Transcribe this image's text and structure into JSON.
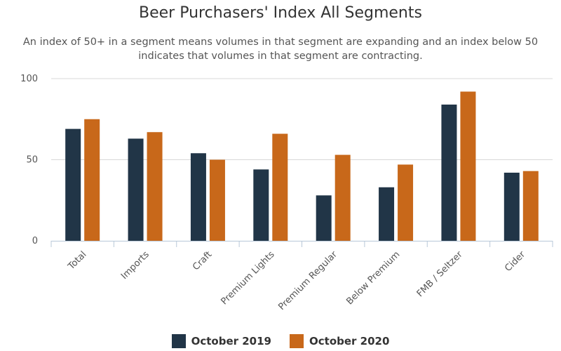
{
  "chart_data": {
    "type": "bar",
    "title": "Beer Purchasers' Index All Segments",
    "subtitle": "An index of 50+ in a segment means volumes in that segment are expanding and an index below 50 indicates that volumes in that segment are contracting.",
    "categories": [
      "Total",
      "Imports",
      "Craft",
      "Premium Lights",
      "Premium Regular",
      "Below Premium",
      "FMB / Seltzer",
      "Cider"
    ],
    "series": [
      {
        "name": "October 2019",
        "color": "#213547",
        "values": [
          69,
          63,
          54,
          44,
          28,
          33,
          84,
          42
        ]
      },
      {
        "name": "October 2020",
        "color": "#c8681a",
        "values": [
          75,
          67,
          50,
          66,
          53,
          47,
          92,
          43
        ]
      }
    ],
    "ylim": [
      0,
      100
    ],
    "yticks": [
      0,
      50,
      100
    ],
    "grid": true,
    "legend_position": "bottom-center"
  }
}
